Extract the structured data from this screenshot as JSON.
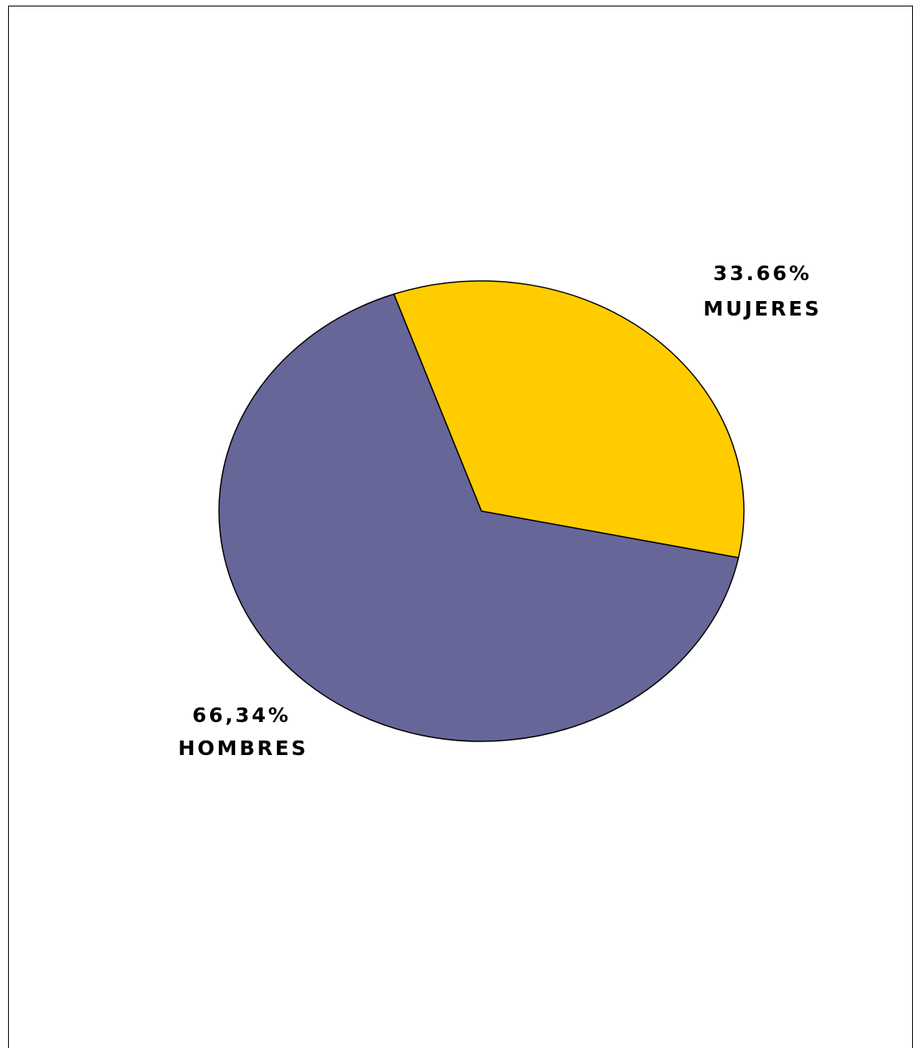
{
  "chart_data": {
    "type": "pie",
    "slices": [
      {
        "label": "MUJERES",
        "value": 33.66,
        "value_label": "33.66%",
        "color": "#FFCC00"
      },
      {
        "label": "HOMBRES",
        "value": 66.34,
        "value_label": "66,34%",
        "color": "#666699"
      }
    ],
    "legend": "none"
  }
}
